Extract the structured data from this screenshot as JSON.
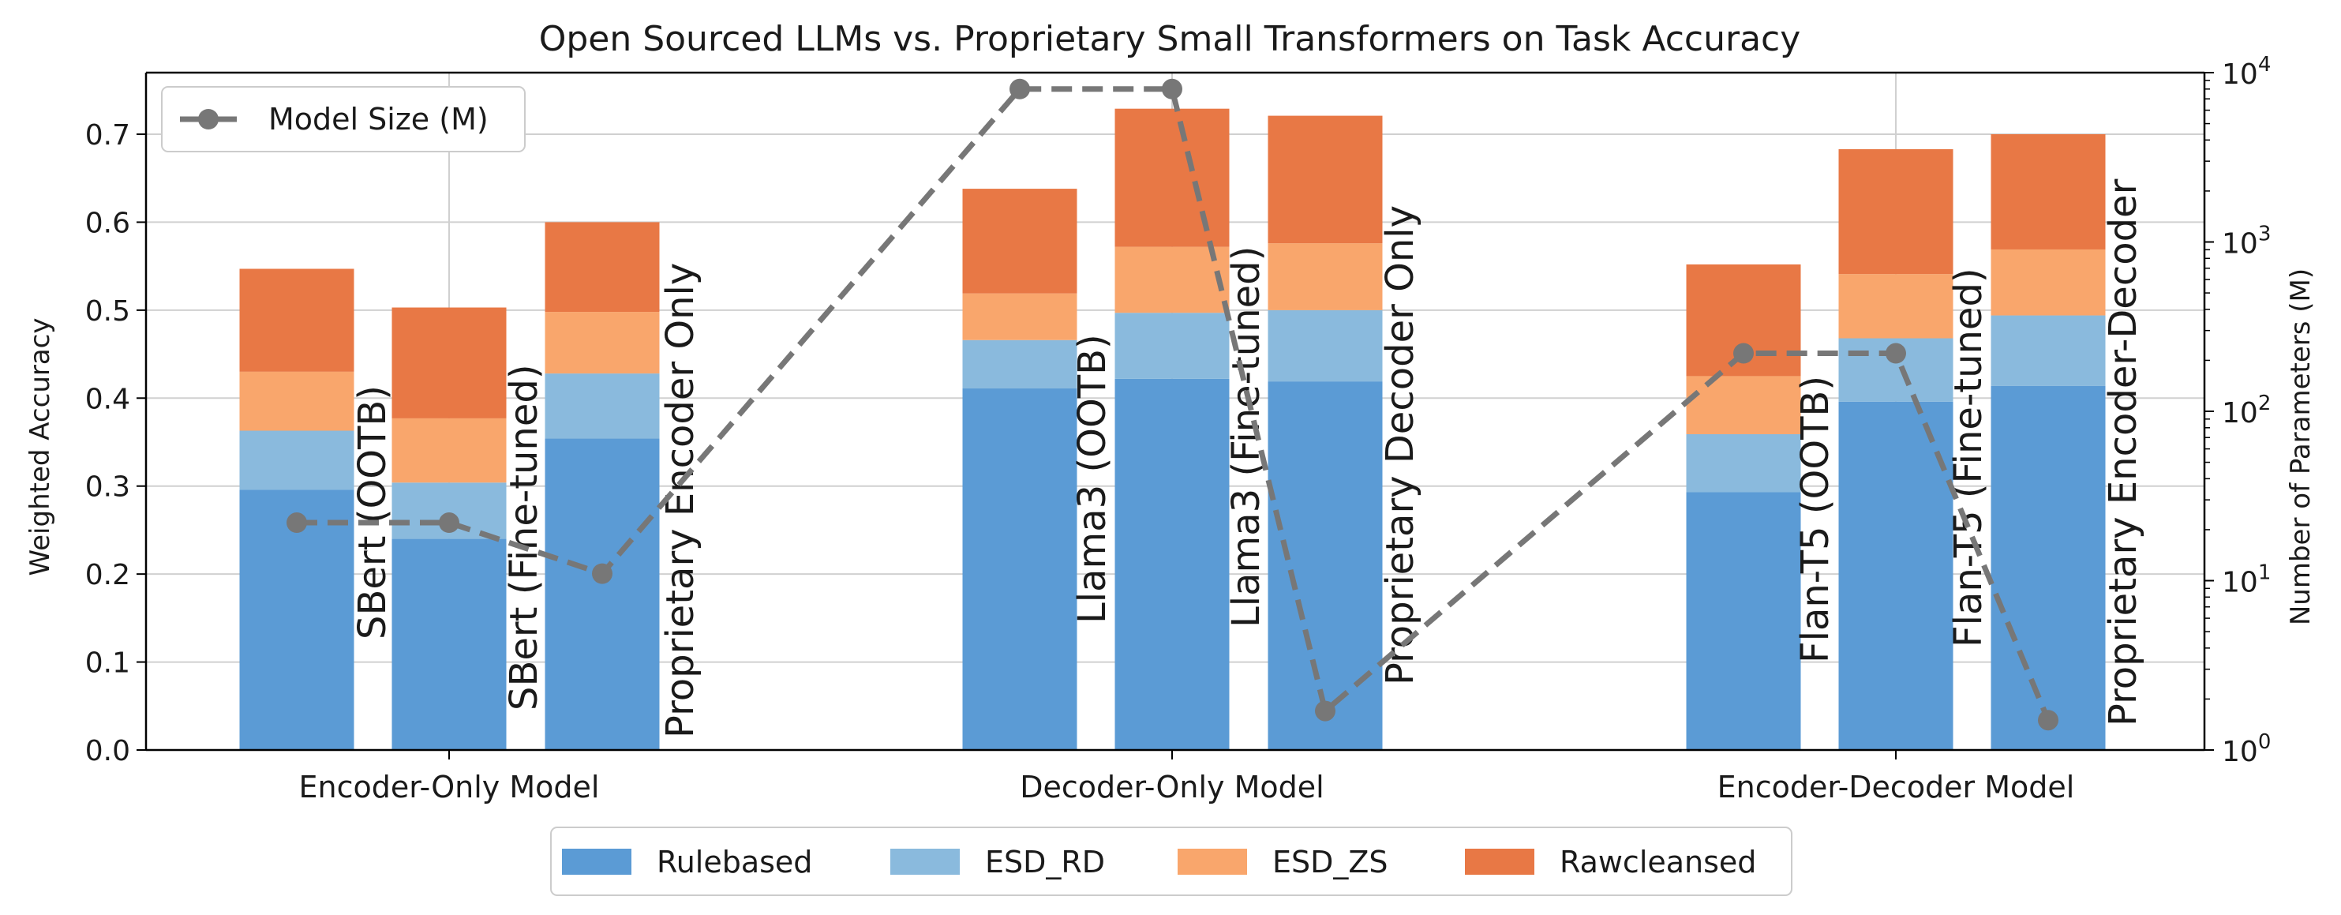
{
  "colors": {
    "Rulebased": "#5b9bd5",
    "ESD_RD": "#8abadd",
    "ESD_ZS": "#f9a66c",
    "Rawcleansed": "#e87845",
    "model_size_line": "#777777",
    "grid": "#d0d0d0",
    "axis": "#000000"
  },
  "chart_data": {
    "type": "bar",
    "stacked": true,
    "title": "Open Sourced LLMs vs. Proprietary Small Transformers on Task Accuracy",
    "xlabel": "",
    "ylabel": "Weighted Accuracy",
    "ylabel_right": "Number of Parameters (M)",
    "ylim": [
      0,
      0.77
    ],
    "yticks": [
      0.0,
      0.1,
      0.2,
      0.3,
      0.4,
      0.5,
      0.6,
      0.7
    ],
    "ytick_labels": [
      "0.0",
      "0.1",
      "0.2",
      "0.3",
      "0.4",
      "0.5",
      "0.6",
      "0.7"
    ],
    "y2_scale": "log",
    "y2lim": [
      1,
      10000
    ],
    "y2_ticks": [
      {
        "value": 1,
        "base": "10",
        "exp": "0"
      },
      {
        "value": 10,
        "base": "10",
        "exp": "1"
      },
      {
        "value": 100,
        "base": "10",
        "exp": "2"
      },
      {
        "value": 1000,
        "base": "10",
        "exp": "3"
      },
      {
        "value": 10000,
        "base": "10",
        "exp": "4"
      }
    ],
    "groups": [
      "Encoder-Only Model",
      "Decoder-Only Model",
      "Encoder-Decoder Model"
    ],
    "categories": [
      "SBert (OOTB)",
      "SBert (Fine-tuned)",
      "Proprietary Encoder Only",
      "Llama3 (OOTB)",
      "Llama3 (Fine-tuned)",
      "Proprietary Decoder Only",
      "Flan-T5 (OOTB)",
      "Flan-T5 (Fine-tuned)",
      "Proprietary Encoder-Decoder"
    ],
    "series": [
      {
        "name": "Rulebased",
        "values": [
          0.296,
          0.24,
          0.354,
          0.411,
          0.422,
          0.419,
          0.293,
          0.396,
          0.414
        ]
      },
      {
        "name": "ESD_RD",
        "values": [
          0.067,
          0.064,
          0.074,
          0.055,
          0.075,
          0.081,
          0.066,
          0.072,
          0.08
        ]
      },
      {
        "name": "ESD_ZS",
        "values": [
          0.067,
          0.073,
          0.07,
          0.053,
          0.075,
          0.076,
          0.066,
          0.073,
          0.075
        ]
      },
      {
        "name": "Rawcleansed",
        "values": [
          0.117,
          0.126,
          0.102,
          0.119,
          0.157,
          0.145,
          0.127,
          0.142,
          0.131
        ]
      }
    ],
    "line_series": {
      "name": "Model Size (M)",
      "style": "dashed",
      "marker": "circle",
      "values": [
        22,
        22,
        11,
        8000,
        8000,
        1.7,
        220,
        220,
        1.5
      ]
    },
    "legend_bottom": [
      "Rulebased",
      "ESD_RD",
      "ESD_ZS",
      "Rawcleansed"
    ],
    "legend_bottom_position": "bottom-center",
    "legend_line_position": "top-left",
    "grid": true
  }
}
